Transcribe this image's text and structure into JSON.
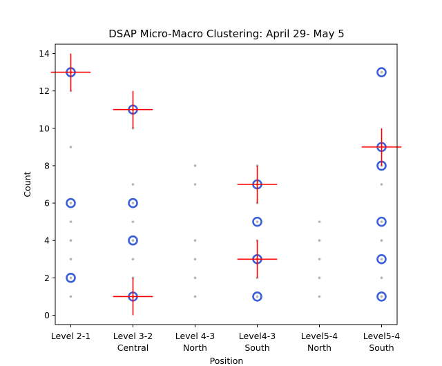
{
  "chart_data": {
    "type": "scatter",
    "title": "DSAP Micro-Macro Clustering: April 29- May 5",
    "xlabel": "Position",
    "ylabel": "Count",
    "ylim": [
      -0.5,
      14.5
    ],
    "y_ticks": [
      0,
      2,
      4,
      6,
      8,
      10,
      12,
      14
    ],
    "categories": [
      {
        "line1": "Level 2-1",
        "line2": ""
      },
      {
        "line1": "Level 3-2",
        "line2": "Central"
      },
      {
        "line1": "Level 4-3",
        "line2": "North"
      },
      {
        "line1": "Level4-3",
        "line2": "South"
      },
      {
        "line1": "Level5-4",
        "line2": "North"
      },
      {
        "line1": "Level5-4",
        "line2": "South"
      }
    ],
    "colors": {
      "raw_points": "#b3b3b3",
      "micro_clusters": "#3a5fd9",
      "macro_clusters": "#ff0000"
    },
    "raw_points": [
      {
        "x": 0,
        "y": [
          1,
          2,
          3,
          4,
          5,
          6,
          9,
          12,
          13
        ]
      },
      {
        "x": 1,
        "y": [
          1,
          2,
          3,
          4,
          5,
          6,
          7,
          10,
          11
        ]
      },
      {
        "x": 2,
        "y": [
          1,
          2,
          3,
          4,
          7,
          8
        ]
      },
      {
        "x": 3,
        "y": [
          1,
          2,
          3,
          4,
          5,
          6,
          7,
          8
        ]
      },
      {
        "x": 4,
        "y": [
          1,
          2,
          3,
          4,
          5
        ]
      },
      {
        "x": 5,
        "y": [
          1,
          2,
          3,
          4,
          5,
          7,
          8,
          9,
          13
        ]
      }
    ],
    "micro_clusters": [
      {
        "x": 0,
        "y": 13
      },
      {
        "x": 0,
        "y": 6
      },
      {
        "x": 0,
        "y": 2
      },
      {
        "x": 1,
        "y": 11
      },
      {
        "x": 1,
        "y": 6
      },
      {
        "x": 1,
        "y": 4
      },
      {
        "x": 1,
        "y": 1
      },
      {
        "x": 3,
        "y": 7
      },
      {
        "x": 3,
        "y": 5
      },
      {
        "x": 3,
        "y": 3
      },
      {
        "x": 3,
        "y": 1
      },
      {
        "x": 5,
        "y": 13
      },
      {
        "x": 5,
        "y": 9
      },
      {
        "x": 5,
        "y": 8
      },
      {
        "x": 5,
        "y": 5
      },
      {
        "x": 5,
        "y": 3
      },
      {
        "x": 5,
        "y": 1
      }
    ],
    "macro_clusters": [
      {
        "x": 0,
        "y": 13,
        "y_extent": 1,
        "x_extent": 0.32
      },
      {
        "x": 1,
        "y": 11,
        "y_extent": 1,
        "x_extent": 0.32
      },
      {
        "x": 1,
        "y": 1,
        "y_extent": 1,
        "x_extent": 0.32
      },
      {
        "x": 3,
        "y": 7,
        "y_extent": 1,
        "x_extent": 0.32
      },
      {
        "x": 3,
        "y": 3,
        "y_extent": 1,
        "x_extent": 0.32
      },
      {
        "x": 5,
        "y": 9,
        "y_extent": 1,
        "x_extent": 0.32
      }
    ]
  }
}
